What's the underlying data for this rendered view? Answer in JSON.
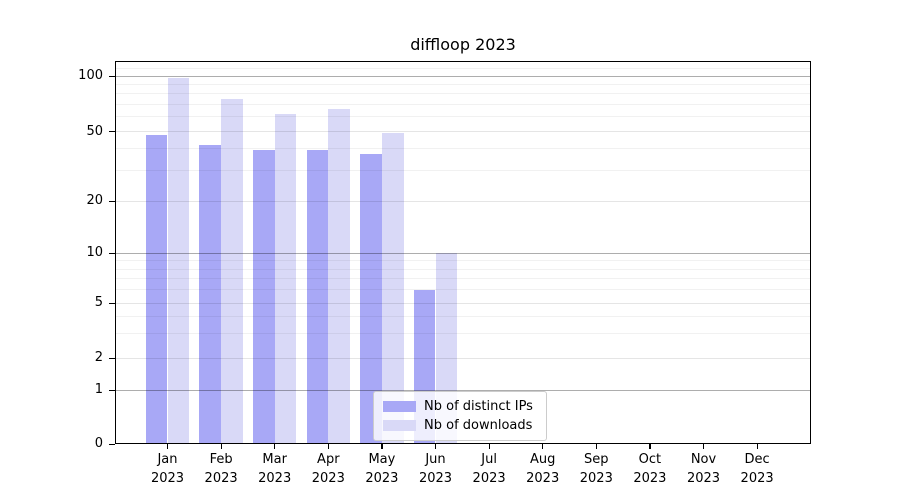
{
  "figure": {
    "title": "diffloop 2023"
  },
  "chart_data": {
    "type": "bar",
    "title": "diffloop 2023",
    "categories": [
      "Jan",
      "Feb",
      "Mar",
      "Apr",
      "May",
      "Jun",
      "Jul",
      "Aug",
      "Sep",
      "Oct",
      "Nov",
      "Dec"
    ],
    "category_year": "2023",
    "series": [
      {
        "name": "Nb of distinct IPs",
        "color": "#a8a8f6",
        "values": [
          48,
          42,
          39,
          39,
          37,
          6,
          0,
          0,
          0,
          0,
          0,
          0
        ]
      },
      {
        "name": "Nb of downloads",
        "color": "#d9d9f7",
        "values": [
          98,
          75,
          62,
          66,
          49,
          10,
          0,
          0,
          0,
          0,
          0,
          0
        ]
      }
    ],
    "xlabel": "",
    "ylabel": "",
    "yscale": "symlog",
    "yticks": [
      0,
      1,
      2,
      5,
      10,
      20,
      50,
      100
    ],
    "ytick_labels": [
      "0",
      "1",
      "2",
      "5",
      "10",
      "20",
      "50",
      "100"
    ],
    "minor_gridlines": [
      3,
      4,
      6,
      7,
      8,
      9,
      30,
      40,
      60,
      70,
      80,
      90,
      110
    ],
    "ticked_minor_gridlines": [
      2,
      5,
      20,
      50
    ],
    "major_gridlines": [
      1,
      10,
      100
    ],
    "ylim": [
      0,
      120
    ],
    "grid": true,
    "legend_position": "lower-center-inside",
    "colors": {
      "axis": "#000000",
      "grid_major": "#b0b0b0",
      "grid_minor": "#ebebeb",
      "background": "#ffffff"
    }
  },
  "legend": {
    "items": [
      {
        "label": "Nb of distinct IPs",
        "color": "#a8a8f6"
      },
      {
        "label": "Nb of downloads",
        "color": "#d9d9f7"
      }
    ]
  }
}
